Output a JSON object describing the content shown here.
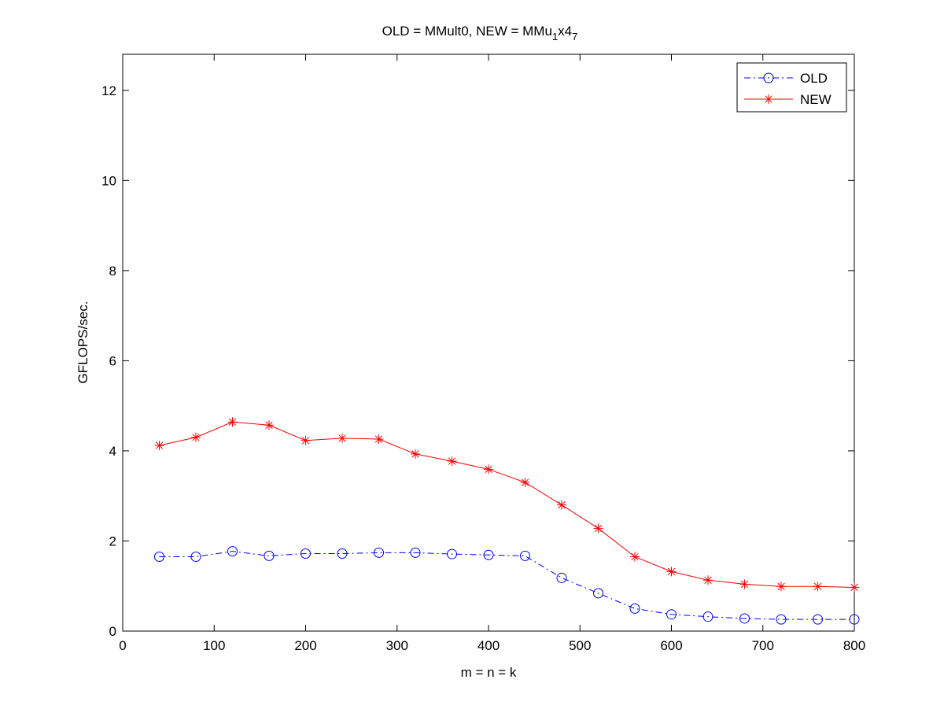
{
  "chart_data": {
    "type": "line",
    "title": "OLD = MMult0, NEW = MMu",
    "title_sub1": "1",
    "title_mid": "x4",
    "title_sub2": "7",
    "xlabel": "m = n = k",
    "ylabel": "GFLOPS/sec.",
    "xlim": [
      0,
      800
    ],
    "ylim": [
      0,
      12.8
    ],
    "xticks": [
      0,
      100,
      200,
      300,
      400,
      500,
      600,
      700,
      800
    ],
    "yticks": [
      0,
      2,
      4,
      6,
      8,
      10,
      12
    ],
    "grid": false,
    "legend_position": "top-right",
    "x": [
      40,
      80,
      120,
      160,
      200,
      240,
      280,
      320,
      360,
      400,
      440,
      480,
      520,
      560,
      600,
      640,
      680,
      720,
      760,
      800
    ],
    "series": [
      {
        "name": "OLD",
        "color": "#0000ff",
        "line": "dash-dot",
        "marker": "circle",
        "values": [
          1.65,
          1.65,
          1.77,
          1.67,
          1.72,
          1.72,
          1.74,
          1.74,
          1.71,
          1.69,
          1.67,
          1.18,
          0.84,
          0.5,
          0.37,
          0.32,
          0.28,
          0.26,
          0.26,
          0.26
        ]
      },
      {
        "name": "NEW",
        "color": "#ff0000",
        "line": "solid",
        "marker": "star",
        "values": [
          4.12,
          4.3,
          4.64,
          4.57,
          4.23,
          4.28,
          4.26,
          3.93,
          3.77,
          3.59,
          3.3,
          2.8,
          2.28,
          1.65,
          1.32,
          1.13,
          1.04,
          0.99,
          0.99,
          0.97
        ]
      }
    ]
  }
}
